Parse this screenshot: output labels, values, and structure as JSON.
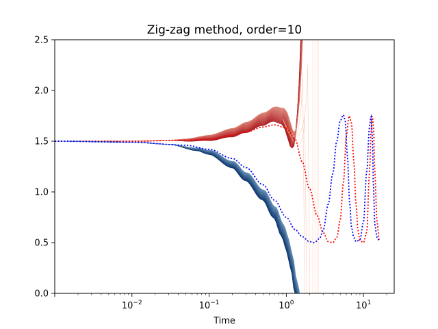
{
  "chart_data": {
    "type": "line",
    "title": "Zig-zag method, order=10",
    "xlabel": "Time",
    "ylabel": "",
    "xscale": "log",
    "xlim": [
      0.001,
      25
    ],
    "ylim": [
      0.0,
      2.5
    ],
    "grid": false,
    "legend": "none",
    "x_ticks": [
      {
        "value": 0.01,
        "base": "10",
        "exp": "−2"
      },
      {
        "value": 0.1,
        "base": "10",
        "exp": "−1"
      },
      {
        "value": 1,
        "base": "10",
        "exp": "0"
      },
      {
        "value": 10,
        "base": "10",
        "exp": "1"
      }
    ],
    "y_ticks": [
      {
        "value": 0.0,
        "label": "0.0"
      },
      {
        "value": 0.5,
        "label": "0.5"
      },
      {
        "value": 1.0,
        "label": "1.0"
      },
      {
        "value": 1.5,
        "label": "1.5"
      },
      {
        "value": 2.0,
        "label": "2.0"
      },
      {
        "value": 2.5,
        "label": "2.5"
      }
    ],
    "series": [
      {
        "role": "ensemble-upper",
        "color_range": [
          "#a50f15",
          "#fcbba1"
        ],
        "x": [
          0.001,
          0.01,
          0.05,
          0.1,
          0.2,
          0.3,
          0.5,
          0.7,
          0.9,
          1.0,
          1.1,
          1.2,
          1.3,
          1.4,
          1.5,
          1.6
        ],
        "y": [
          1.5,
          1.5,
          1.51,
          1.53,
          1.58,
          1.63,
          1.71,
          1.76,
          1.74,
          1.69,
          1.58,
          1.5,
          1.52,
          1.7,
          2.1,
          2.6
        ]
      },
      {
        "role": "ensemble-lower",
        "color_range": [
          "#08306b",
          "#9ecae1"
        ],
        "x": [
          0.001,
          0.01,
          0.03,
          0.07,
          0.1,
          0.2,
          0.3,
          0.5,
          0.7,
          0.9,
          1.0,
          1.1,
          1.2,
          1.3,
          1.4,
          1.5
        ],
        "y": [
          1.5,
          1.49,
          1.47,
          1.42,
          1.39,
          1.27,
          1.15,
          0.97,
          0.8,
          0.62,
          0.52,
          0.4,
          0.27,
          0.1,
          0.0,
          -0.2
        ]
      },
      {
        "role": "reference-red",
        "color": "#ff0000",
        "style": "dotted",
        "x": [
          0.001,
          0.01,
          0.05,
          0.1,
          0.2,
          0.3,
          0.5,
          0.7,
          1.0,
          1.3,
          1.6,
          2.0,
          2.5,
          3.0,
          3.5,
          4.0,
          4.5,
          5.0,
          5.5,
          6.0,
          6.5,
          7.0,
          7.5,
          8.0,
          8.5,
          9.0,
          10.0,
          11.0,
          12.0,
          12.5,
          13.0,
          13.5,
          14.0,
          15.0,
          16.0
        ],
        "y": [
          1.5,
          1.5,
          1.51,
          1.52,
          1.56,
          1.59,
          1.64,
          1.66,
          1.63,
          1.52,
          1.3,
          1.03,
          0.77,
          0.6,
          0.51,
          0.5,
          0.55,
          0.72,
          1.1,
          1.55,
          1.75,
          1.68,
          1.3,
          0.88,
          0.62,
          0.52,
          0.5,
          0.6,
          1.2,
          1.6,
          1.75,
          1.65,
          1.2,
          0.7,
          0.52
        ]
      },
      {
        "role": "reference-blue",
        "color": "#0000ff",
        "style": "dotted",
        "x": [
          0.001,
          0.01,
          0.05,
          0.1,
          0.2,
          0.3,
          0.5,
          0.7,
          1.0,
          1.3,
          1.6,
          2.0,
          2.3,
          2.7,
          3.0,
          3.5,
          4.0,
          4.5,
          5.0,
          5.5,
          5.8,
          6.2,
          6.6,
          7.0,
          7.5,
          8.0,
          9.0,
          10.0,
          11.0,
          12.0,
          12.5,
          13.0,
          13.5,
          14.0,
          15.0,
          16.0
        ],
        "y": [
          1.5,
          1.49,
          1.46,
          1.42,
          1.33,
          1.24,
          1.07,
          0.92,
          0.75,
          0.63,
          0.56,
          0.51,
          0.5,
          0.54,
          0.62,
          0.88,
          1.18,
          1.5,
          1.7,
          1.76,
          1.7,
          1.35,
          0.9,
          0.65,
          0.55,
          0.51,
          0.53,
          0.7,
          1.2,
          1.65,
          1.75,
          1.55,
          1.05,
          0.68,
          0.55,
          0.52
        ]
      }
    ]
  }
}
